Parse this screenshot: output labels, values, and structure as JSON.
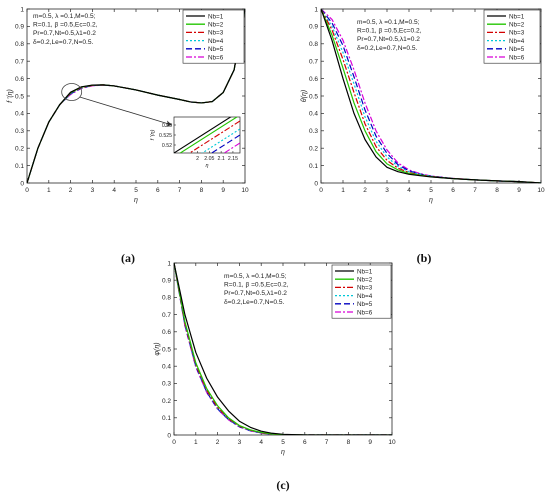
{
  "panel_labels": [
    "(a)",
    "(b)",
    "(c)"
  ],
  "params": [
    "m=0.5, λ =0.1,M=0.5;",
    "R=0.1, β =0.5,Ec=0.2,",
    "Pr=0.7,Nt=0.5,λ1=0.2",
    "δ=0.2,Le=0.7,N=0.5."
  ],
  "legend_labels": [
    "Nb=1",
    "Nb=2",
    "Nb=3",
    "Nb=4",
    "Nb=5",
    "Nb=6"
  ],
  "colors": [
    "#000000",
    "#22c400",
    "#d40000",
    "#00c8d8",
    "#0000c0",
    "#d800d8"
  ],
  "dashes": [
    "",
    "",
    "6,2,2,2",
    "2,2",
    "6,3",
    "6,2,2,2"
  ],
  "chart_data": [
    {
      "type": "line",
      "panel": "(a)",
      "xlabel": "η",
      "ylabel": "f '(η)",
      "xlim": [
        0,
        10
      ],
      "ylim": [
        0,
        1
      ],
      "xticks": [
        "0",
        "1",
        "2",
        "3",
        "4",
        "5",
        "6",
        "7",
        "8",
        "9",
        "10"
      ],
      "yticks": [
        "0",
        "0.1",
        "0.2",
        "0.3",
        "0.4",
        "0.5",
        "0.6",
        "0.7",
        "0.8",
        "0.9",
        "1"
      ],
      "legend": "top-right",
      "x": [
        0,
        0.5,
        1,
        1.5,
        2,
        2.5,
        3,
        3.5,
        4,
        5,
        6,
        7,
        7.5,
        8,
        8.5,
        9,
        9.5,
        10
      ],
      "series": [
        {
          "name": "Nb=1",
          "values": [
            0,
            0.2,
            0.35,
            0.45,
            0.522,
            0.553,
            0.563,
            0.564,
            0.558,
            0.535,
            0.505,
            0.48,
            0.466,
            0.46,
            0.468,
            0.52,
            0.65,
            1.0
          ]
        },
        {
          "name": "Nb=2",
          "values": [
            0,
            0.2,
            0.35,
            0.45,
            0.519,
            0.551,
            0.562,
            0.564,
            0.558,
            0.535,
            0.505,
            0.48,
            0.466,
            0.46,
            0.468,
            0.52,
            0.65,
            1.0
          ]
        },
        {
          "name": "Nb=3",
          "values": [
            0,
            0.2,
            0.35,
            0.45,
            0.517,
            0.549,
            0.561,
            0.564,
            0.558,
            0.535,
            0.505,
            0.48,
            0.466,
            0.46,
            0.468,
            0.52,
            0.65,
            1.0
          ]
        },
        {
          "name": "Nb=4",
          "values": [
            0,
            0.2,
            0.35,
            0.45,
            0.514,
            0.548,
            0.561,
            0.564,
            0.558,
            0.535,
            0.505,
            0.48,
            0.466,
            0.46,
            0.468,
            0.52,
            0.65,
            1.0
          ]
        },
        {
          "name": "Nb=5",
          "values": [
            0,
            0.2,
            0.35,
            0.45,
            0.512,
            0.546,
            0.56,
            0.563,
            0.558,
            0.535,
            0.505,
            0.48,
            0.466,
            0.46,
            0.468,
            0.52,
            0.65,
            1.0
          ]
        },
        {
          "name": "Nb=6",
          "values": [
            0,
            0.2,
            0.35,
            0.45,
            0.509,
            0.544,
            0.559,
            0.563,
            0.558,
            0.535,
            0.505,
            0.48,
            0.466,
            0.46,
            0.468,
            0.52,
            0.65,
            1.0
          ]
        }
      ],
      "inset": {
        "xlabel": "η",
        "ylabel": "f '(η)",
        "xlim": [
          1.9,
          2.18
        ],
        "ylim": [
          0.516,
          0.534
        ],
        "xticks": [
          "2",
          "2.05",
          "2.1",
          "2.15"
        ],
        "yticks": [
          "0.52",
          "0.525",
          "0.53"
        ],
        "x": [
          1.9,
          2.18
        ],
        "series": [
          {
            "name": "Nb=1",
            "values": [
              0.516,
              0.537
            ]
          },
          {
            "name": "Nb=2",
            "values": [
              0.514,
              0.535
            ]
          },
          {
            "name": "Nb=3",
            "values": [
              0.511,
              0.532
            ]
          },
          {
            "name": "Nb=4",
            "values": [
              0.507,
              0.528
            ]
          },
          {
            "name": "Nb=5",
            "values": [
              0.504,
              0.525
            ]
          },
          {
            "name": "Nb=6",
            "values": [
              0.5,
              0.521
            ]
          }
        ]
      }
    },
    {
      "type": "line",
      "panel": "(b)",
      "xlabel": "η",
      "ylabel": "θ(η)",
      "xlim": [
        0,
        10
      ],
      "ylim": [
        0,
        1
      ],
      "xticks": [
        "0",
        "1",
        "2",
        "3",
        "4",
        "5",
        "6",
        "7",
        "8",
        "9",
        "10"
      ],
      "yticks": [
        "0",
        "0.1",
        "0.2",
        "0.3",
        "0.4",
        "0.5",
        "0.6",
        "0.7",
        "0.8",
        "0.9",
        "1"
      ],
      "legend": "top-right",
      "x": [
        0,
        0.5,
        1,
        1.5,
        2,
        2.5,
        3,
        3.5,
        4,
        4.5,
        5,
        6,
        7,
        8,
        9,
        10
      ],
      "series": [
        {
          "name": "Nb=1",
          "values": [
            1.0,
            0.82,
            0.6,
            0.4,
            0.25,
            0.15,
            0.09,
            0.065,
            0.05,
            0.042,
            0.035,
            0.025,
            0.018,
            0.012,
            0.008,
            0.0
          ]
        },
        {
          "name": "Nb=2",
          "values": [
            1.0,
            0.85,
            0.66,
            0.46,
            0.3,
            0.18,
            0.11,
            0.075,
            0.055,
            0.045,
            0.036,
            0.025,
            0.018,
            0.012,
            0.008,
            0.0
          ]
        },
        {
          "name": "Nb=3",
          "values": [
            1.0,
            0.88,
            0.71,
            0.52,
            0.34,
            0.21,
            0.13,
            0.085,
            0.06,
            0.047,
            0.037,
            0.026,
            0.018,
            0.012,
            0.008,
            0.0
          ]
        },
        {
          "name": "Nb=4",
          "values": [
            1.0,
            0.9,
            0.75,
            0.57,
            0.38,
            0.24,
            0.15,
            0.095,
            0.065,
            0.05,
            0.038,
            0.026,
            0.018,
            0.012,
            0.008,
            0.0
          ]
        },
        {
          "name": "Nb=5",
          "values": [
            1.0,
            0.92,
            0.79,
            0.61,
            0.42,
            0.27,
            0.17,
            0.105,
            0.07,
            0.052,
            0.039,
            0.026,
            0.018,
            0.012,
            0.008,
            0.0
          ]
        },
        {
          "name": "Nb=6",
          "values": [
            1.0,
            0.94,
            0.82,
            0.65,
            0.46,
            0.3,
            0.19,
            0.115,
            0.075,
            0.054,
            0.04,
            0.027,
            0.018,
            0.012,
            0.008,
            0.0
          ]
        }
      ]
    },
    {
      "type": "line",
      "panel": "(c)",
      "xlabel": "η",
      "ylabel": "φ(η)",
      "xlim": [
        0,
        10
      ],
      "ylim": [
        0,
        1
      ],
      "xticks": [
        "0",
        "1",
        "2",
        "3",
        "4",
        "5",
        "6",
        "7",
        "8",
        "9",
        "10"
      ],
      "yticks": [
        "0",
        "0.1",
        "0.2",
        "0.3",
        "0.4",
        "0.5",
        "0.6",
        "0.7",
        "0.8",
        "0.9",
        "1"
      ],
      "legend": "top-right",
      "x": [
        0,
        0.5,
        1,
        1.5,
        2,
        2.5,
        3,
        3.5,
        4,
        4.5,
        5,
        6,
        7,
        10
      ],
      "series": [
        {
          "name": "Nb=1",
          "values": [
            1.0,
            0.7,
            0.48,
            0.33,
            0.22,
            0.14,
            0.08,
            0.045,
            0.022,
            0.01,
            0.004,
            0.0,
            0.0,
            0.0
          ]
        },
        {
          "name": "Nb=2",
          "values": [
            1.0,
            0.66,
            0.42,
            0.27,
            0.17,
            0.1,
            0.055,
            0.03,
            0.015,
            0.006,
            0.002,
            0.0,
            0.0,
            0.0
          ]
        },
        {
          "name": "Nb=3",
          "values": [
            1.0,
            0.65,
            0.41,
            0.26,
            0.16,
            0.095,
            0.052,
            0.028,
            0.013,
            0.005,
            0.002,
            0.0,
            0.0,
            0.0
          ]
        },
        {
          "name": "Nb=4",
          "values": [
            1.0,
            0.645,
            0.405,
            0.255,
            0.155,
            0.092,
            0.05,
            0.026,
            0.012,
            0.005,
            0.002,
            0.0,
            0.0,
            0.0
          ]
        },
        {
          "name": "Nb=5",
          "values": [
            1.0,
            0.64,
            0.4,
            0.25,
            0.152,
            0.09,
            0.048,
            0.025,
            0.012,
            0.005,
            0.002,
            0.0,
            0.0,
            0.0
          ]
        },
        {
          "name": "Nb=6",
          "values": [
            1.0,
            0.635,
            0.395,
            0.247,
            0.15,
            0.088,
            0.047,
            0.024,
            0.011,
            0.004,
            0.002,
            0.0,
            0.0,
            0.0
          ]
        }
      ]
    }
  ]
}
